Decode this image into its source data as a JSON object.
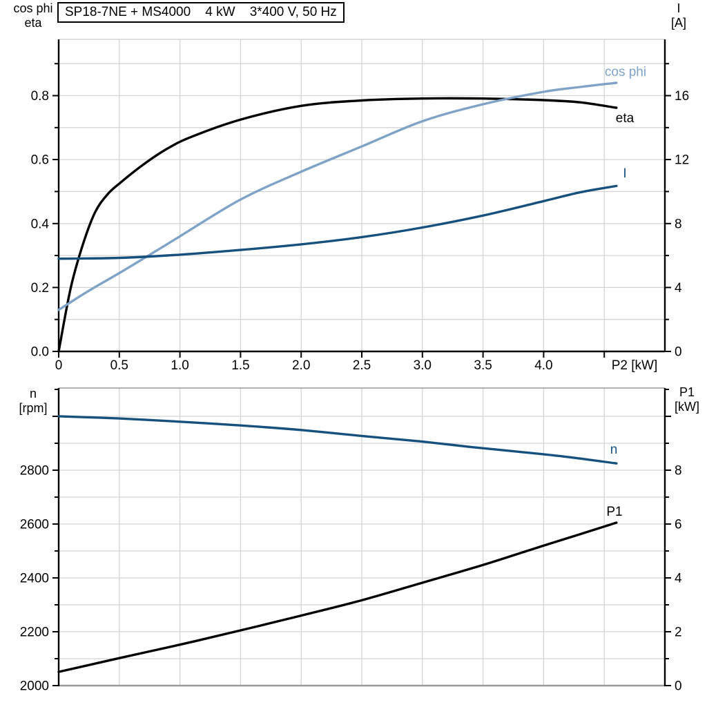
{
  "title_box": {
    "text": "SP18-7NE + MS4000    4 kW    3*400 V, 50 Hz"
  },
  "colors": {
    "black": "#000000",
    "dark_blue": "#16507c",
    "light_blue": "#7fa3c6",
    "grid": "#d4d4d4",
    "border_gray": "#999999"
  },
  "chart_data": [
    {
      "id": "motor-electrical-curves",
      "type": "line",
      "x_axis": {
        "label": "P2 [kW]",
        "range": [
          0,
          5.0
        ],
        "major_tick_step": 0.5,
        "grid_step": 0.5,
        "tick_labels": [
          "0",
          "0.5",
          "1.0",
          "1.5",
          "2.0",
          "2.5",
          "3.0",
          "3.5",
          "4.0"
        ],
        "unlabeled_ticks": [
          4.5
        ]
      },
      "left_axis": {
        "corner": {
          "line1": "cos phi",
          "line2": "eta"
        },
        "range": [
          0,
          0.976
        ],
        "major_step": 0.2,
        "minor_step": 0.1,
        "tick_labels": [
          "0.0",
          "0.2",
          "0.4",
          "0.6",
          "0.8"
        ]
      },
      "right_axis": {
        "corner": {
          "line1": "I",
          "line2": "[A]"
        },
        "range": [
          0,
          19.52
        ],
        "major_step": 4,
        "minor_step": 2,
        "tick_labels": [
          "0",
          "4",
          "8",
          "12",
          "16"
        ]
      },
      "series": [
        {
          "name": "eta",
          "label": "eta",
          "axis": "left",
          "color_key": "black",
          "x": [
            0,
            0.1,
            0.2,
            0.3,
            0.4,
            0.5,
            0.7,
            0.9,
            1.1,
            1.5,
            2.0,
            2.5,
            3.0,
            3.5,
            4.0,
            4.3,
            4.6
          ],
          "y": [
            0,
            0.2,
            0.335,
            0.435,
            0.49,
            0.525,
            0.585,
            0.635,
            0.672,
            0.725,
            0.768,
            0.785,
            0.791,
            0.791,
            0.786,
            0.779,
            0.762
          ]
        },
        {
          "name": "cos phi",
          "label": "cos phi",
          "axis": "left",
          "color_key": "light_blue",
          "x": [
            0,
            0.25,
            0.5,
            0.75,
            1.0,
            1.5,
            2.0,
            2.5,
            3.0,
            3.5,
            4.0,
            4.3,
            4.6
          ],
          "y": [
            0.13,
            0.19,
            0.245,
            0.302,
            0.36,
            0.475,
            0.562,
            0.641,
            0.72,
            0.773,
            0.812,
            0.827,
            0.84
          ]
        },
        {
          "name": "I",
          "label": "I",
          "axis": "right",
          "color_key": "dark_blue",
          "x": [
            0,
            0.5,
            1.0,
            1.5,
            2.0,
            2.5,
            3.0,
            3.5,
            4.0,
            4.3,
            4.6
          ],
          "y": [
            5.8,
            5.85,
            6.05,
            6.35,
            6.7,
            7.15,
            7.75,
            8.5,
            9.4,
            9.95,
            10.35
          ]
        }
      ]
    },
    {
      "id": "motor-speed-power-curves",
      "type": "line",
      "x_axis": {
        "label": "",
        "range": [
          0,
          5.0
        ],
        "major_tick_step": 0.5,
        "grid_step": 0.5,
        "tick_labels": [],
        "unlabeled_ticks": []
      },
      "left_axis": {
        "corner": {
          "line1": "n",
          "line2": "[rpm]"
        },
        "range": [
          2000,
          3105
        ],
        "major_step": 200,
        "minor_step": 100,
        "tick_labels": [
          "2000",
          "2200",
          "2400",
          "2600",
          "2800"
        ]
      },
      "right_axis": {
        "corner": {
          "line1": "P1",
          "line2": "[kW]"
        },
        "range": [
          0,
          11.05
        ],
        "major_step": 2,
        "minor_step": 1,
        "tick_labels": [
          "0",
          "2",
          "4",
          "6",
          "8"
        ]
      },
      "series": [
        {
          "name": "n",
          "label": "n",
          "axis": "left",
          "color_key": "dark_blue",
          "x": [
            0,
            0.5,
            1.0,
            1.5,
            2.0,
            2.5,
            3.0,
            3.4,
            3.8,
            4.2,
            4.6
          ],
          "y": [
            3000,
            2992,
            2980,
            2966,
            2949,
            2927,
            2906,
            2886,
            2868,
            2849,
            2825
          ]
        },
        {
          "name": "P1",
          "label": "P1",
          "axis": "right",
          "color_key": "black",
          "x": [
            0,
            0.5,
            1.0,
            1.5,
            2.0,
            2.5,
            3.0,
            3.5,
            4.0,
            4.3,
            4.6
          ],
          "y": [
            0.51,
            1.02,
            1.52,
            2.05,
            2.6,
            3.17,
            3.82,
            4.48,
            5.2,
            5.62,
            6.05
          ]
        }
      ]
    }
  ]
}
